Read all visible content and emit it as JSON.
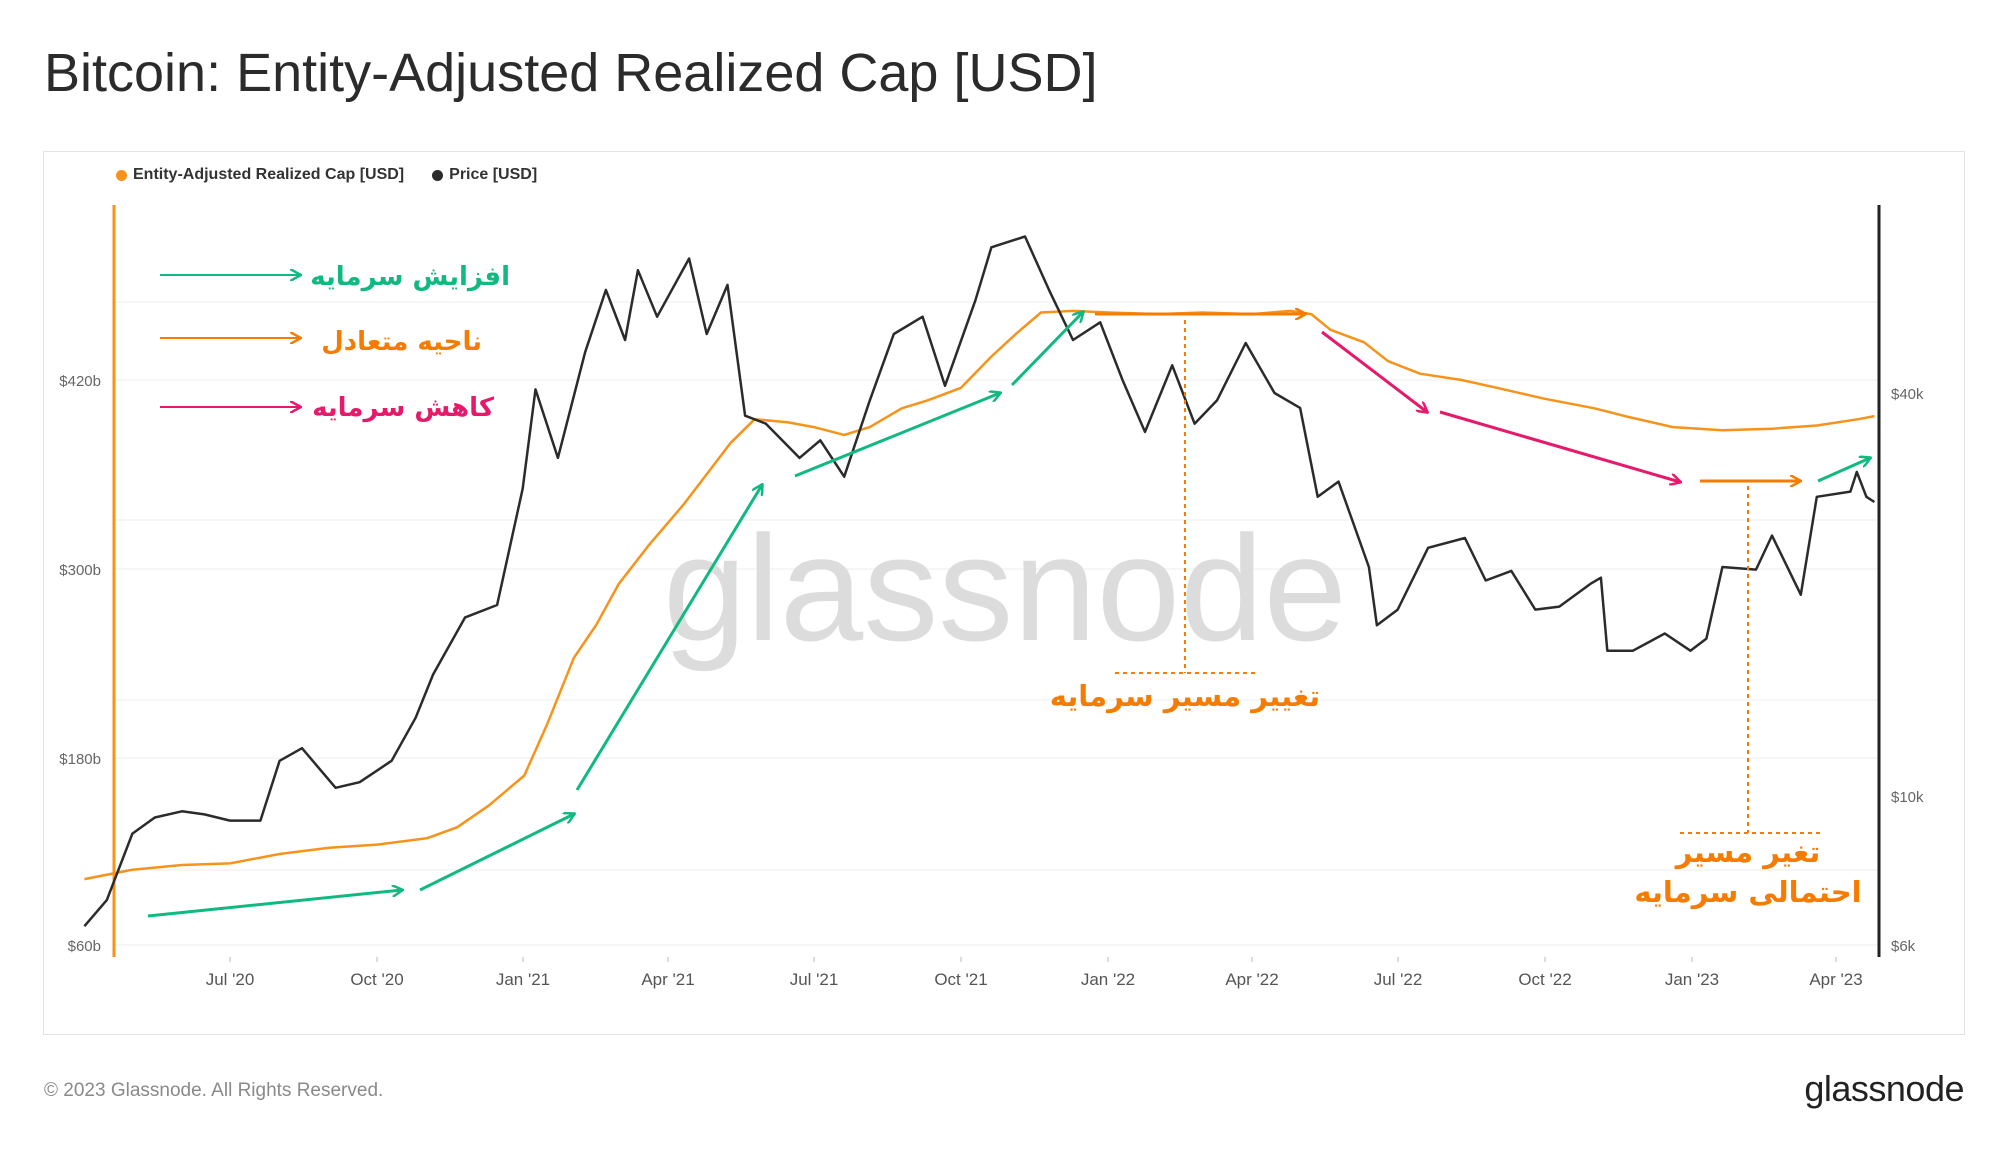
{
  "title": "Bitcoin: Entity-Adjusted Realized Cap [USD]",
  "footer": {
    "copyright": "© 2023 Glassnode. All Rights Reserved.",
    "logo": "glassnode"
  },
  "watermark": "glassnode",
  "colors": {
    "realized_cap": "#f7931a",
    "price": "#2b2b2b",
    "increase": "#10b981",
    "balance": "#f57c00",
    "decrease": "#e6196b"
  },
  "annotations": {
    "legend_increase": "افزایش سرمایه",
    "legend_balance": "ناحیه متعادل",
    "legend_decrease": "کاهش سرمایه",
    "capital_shift": "تغییر مسیر سرمایه",
    "possible_shift_line1": "تغیر مسیر",
    "possible_shift_line2": "احتمالی سرمایه"
  },
  "chart_data": {
    "type": "line",
    "legend": [
      "Entity-Adjusted Realized Cap [USD]",
      "Price [USD]"
    ],
    "legend_position": "top-left",
    "grid": true,
    "x_ticks": [
      "Jul '20",
      "Oct '20",
      "Jan '21",
      "Apr '21",
      "Jul '21",
      "Oct '21",
      "Jan '22",
      "Apr '22",
      "Jul '22",
      "Oct '22",
      "Jan '23",
      "Apr '23"
    ],
    "y_left": {
      "ticks": [
        "$60b",
        "$180b",
        "$300b",
        "$420b"
      ]
    },
    "y_right": {
      "scale": "log",
      "ticks": [
        "$6k",
        "$10k",
        "$40k"
      ]
    },
    "series": [
      {
        "name": "Entity-Adjusted Realized Cap [USD]",
        "axis": "left",
        "points": [
          [
            "2020-04-01",
            102
          ],
          [
            "2020-05-01",
            108
          ],
          [
            "2020-06-01",
            111
          ],
          [
            "2020-07-01",
            112
          ],
          [
            "2020-08-01",
            118
          ],
          [
            "2020-09-01",
            122
          ],
          [
            "2020-10-01",
            124
          ],
          [
            "2020-11-01",
            128
          ],
          [
            "2020-11-20",
            135
          ],
          [
            "2020-12-10",
            149
          ],
          [
            "2021-01-01",
            168
          ],
          [
            "2021-01-15",
            200
          ],
          [
            "2021-02-01",
            243
          ],
          [
            "2021-02-15",
            264
          ],
          [
            "2021-03-01",
            290
          ],
          [
            "2021-03-20",
            315
          ],
          [
            "2021-04-10",
            340
          ],
          [
            "2021-04-25",
            360
          ],
          [
            "2021-05-10",
            380
          ],
          [
            "2021-05-25",
            395
          ],
          [
            "2021-06-15",
            393
          ],
          [
            "2021-07-01",
            390
          ],
          [
            "2021-07-20",
            385
          ],
          [
            "2021-08-05",
            390
          ],
          [
            "2021-08-25",
            402
          ],
          [
            "2021-09-10",
            407
          ],
          [
            "2021-10-01",
            415
          ],
          [
            "2021-10-20",
            435
          ],
          [
            "2021-11-05",
            450
          ],
          [
            "2021-11-20",
            463
          ],
          [
            "2021-12-10",
            464
          ],
          [
            "2022-01-01",
            463
          ],
          [
            "2022-02-01",
            462
          ],
          [
            "2022-03-01",
            463
          ],
          [
            "2022-04-01",
            462
          ],
          [
            "2022-04-25",
            464
          ],
          [
            "2022-05-08",
            462
          ],
          [
            "2022-05-20",
            452
          ],
          [
            "2022-06-10",
            444
          ],
          [
            "2022-06-25",
            432
          ],
          [
            "2022-07-15",
            424
          ],
          [
            "2022-08-10",
            420
          ],
          [
            "2022-09-01",
            415
          ],
          [
            "2022-10-01",
            408
          ],
          [
            "2022-11-01",
            402
          ],
          [
            "2022-11-20",
            397
          ],
          [
            "2022-12-20",
            390
          ],
          [
            "2023-01-20",
            388
          ],
          [
            "2023-02-20",
            389
          ],
          [
            "2023-03-20",
            391
          ],
          [
            "2023-04-15",
            395
          ],
          [
            "2023-04-25",
            397
          ]
        ]
      },
      {
        "name": "Price [USD]",
        "axis": "right",
        "points": [
          [
            "2020-04-01",
            6400
          ],
          [
            "2020-04-15",
            7000
          ],
          [
            "2020-05-01",
            8800
          ],
          [
            "2020-05-15",
            9300
          ],
          [
            "2020-06-01",
            9500
          ],
          [
            "2020-06-15",
            9400
          ],
          [
            "2020-07-01",
            9200
          ],
          [
            "2020-07-20",
            9200
          ],
          [
            "2020-08-01",
            11300
          ],
          [
            "2020-08-15",
            11800
          ],
          [
            "2020-09-05",
            10300
          ],
          [
            "2020-09-20",
            10500
          ],
          [
            "2020-10-10",
            11300
          ],
          [
            "2020-10-25",
            13100
          ],
          [
            "2020-11-05",
            15200
          ],
          [
            "2020-11-25",
            18500
          ],
          [
            "2020-12-15",
            19300
          ],
          [
            "2020-12-31",
            28800
          ],
          [
            "2021-01-08",
            40500
          ],
          [
            "2021-01-22",
            32000
          ],
          [
            "2021-02-08",
            46000
          ],
          [
            "2021-02-21",
            57000
          ],
          [
            "2021-03-05",
            48000
          ],
          [
            "2021-03-13",
            61000
          ],
          [
            "2021-03-25",
            52000
          ],
          [
            "2021-04-14",
            63500
          ],
          [
            "2021-04-25",
            49000
          ],
          [
            "2021-05-08",
            58000
          ],
          [
            "2021-05-19",
            37000
          ],
          [
            "2021-06-01",
            36000
          ],
          [
            "2021-06-22",
            32000
          ],
          [
            "2021-07-05",
            34000
          ],
          [
            "2021-07-20",
            30000
          ],
          [
            "2021-08-05",
            39000
          ],
          [
            "2021-08-20",
            49000
          ],
          [
            "2021-09-07",
            52000
          ],
          [
            "2021-09-21",
            41000
          ],
          [
            "2021-10-10",
            55000
          ],
          [
            "2021-10-20",
            66000
          ],
          [
            "2021-11-10",
            68500
          ],
          [
            "2021-11-25",
            57000
          ],
          [
            "2021-12-10",
            48000
          ],
          [
            "2021-12-27",
            51000
          ],
          [
            "2022-01-10",
            41800
          ],
          [
            "2022-01-24",
            35000
          ],
          [
            "2022-02-10",
            44000
          ],
          [
            "2022-02-24",
            36000
          ],
          [
            "2022-03-10",
            39000
          ],
          [
            "2022-03-28",
            47500
          ],
          [
            "2022-04-15",
            40000
          ],
          [
            "2022-05-01",
            38000
          ],
          [
            "2022-05-12",
            28000
          ],
          [
            "2022-05-25",
            29500
          ],
          [
            "2022-06-13",
            22000
          ],
          [
            "2022-06-18",
            18000
          ],
          [
            "2022-07-01",
            19000
          ],
          [
            "2022-07-20",
            23500
          ],
          [
            "2022-08-12",
            24300
          ],
          [
            "2022-08-25",
            21000
          ],
          [
            "2022-09-10",
            21700
          ],
          [
            "2022-09-25",
            19000
          ],
          [
            "2022-10-10",
            19200
          ],
          [
            "2022-10-30",
            20800
          ],
          [
            "2022-11-05",
            21200
          ],
          [
            "2022-11-09",
            16500
          ],
          [
            "2022-11-25",
            16500
          ],
          [
            "2022-12-15",
            17500
          ],
          [
            "2022-12-31",
            16500
          ],
          [
            "2023-01-10",
            17200
          ],
          [
            "2023-01-20",
            22000
          ],
          [
            "2023-02-10",
            21800
          ],
          [
            "2023-02-20",
            24500
          ],
          [
            "2023-03-10",
            20000
          ],
          [
            "2023-03-20",
            28000
          ],
          [
            "2023-04-10",
            28500
          ],
          [
            "2023-04-14",
            30500
          ],
          [
            "2023-04-20",
            28000
          ],
          [
            "2023-04-25",
            27500
          ]
        ]
      }
    ]
  }
}
